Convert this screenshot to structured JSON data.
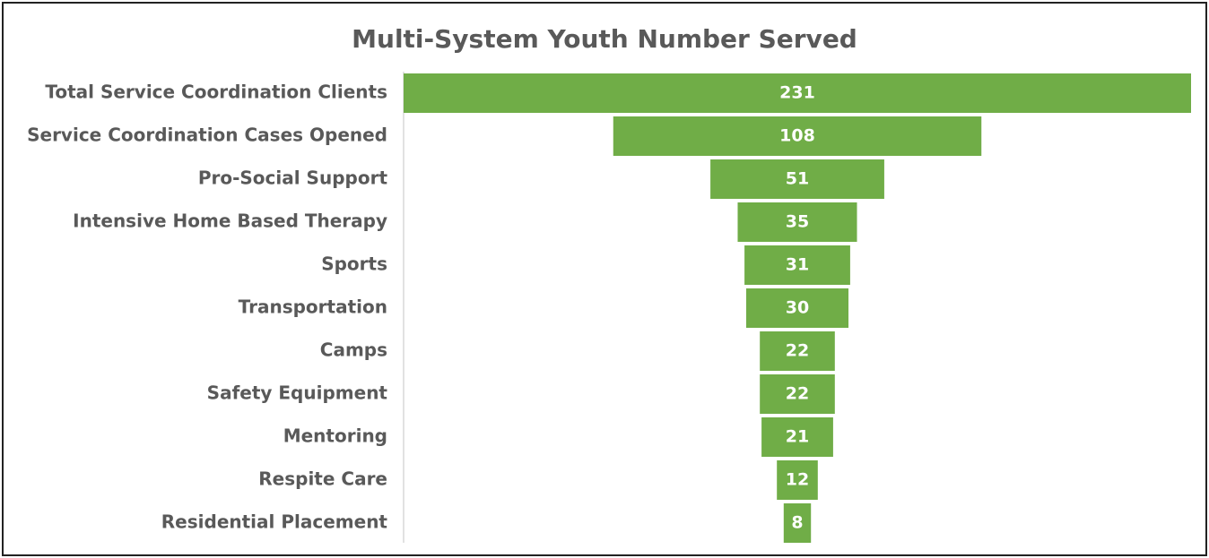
{
  "chart_data": {
    "type": "funnel",
    "title": "Multi-System Youth Number Served",
    "categories": [
      "Total Service Coordination Clients",
      "Service Coordination Cases Opened",
      "Pro-Social Support",
      "Intensive Home Based Therapy",
      "Sports",
      "Transportation",
      "Camps",
      "Safety Equipment",
      "Mentoring",
      "Respite Care",
      "Residential Placement"
    ],
    "values": [
      231,
      108,
      51,
      35,
      31,
      30,
      22,
      22,
      21,
      12,
      8
    ],
    "color": "#70ad47"
  }
}
